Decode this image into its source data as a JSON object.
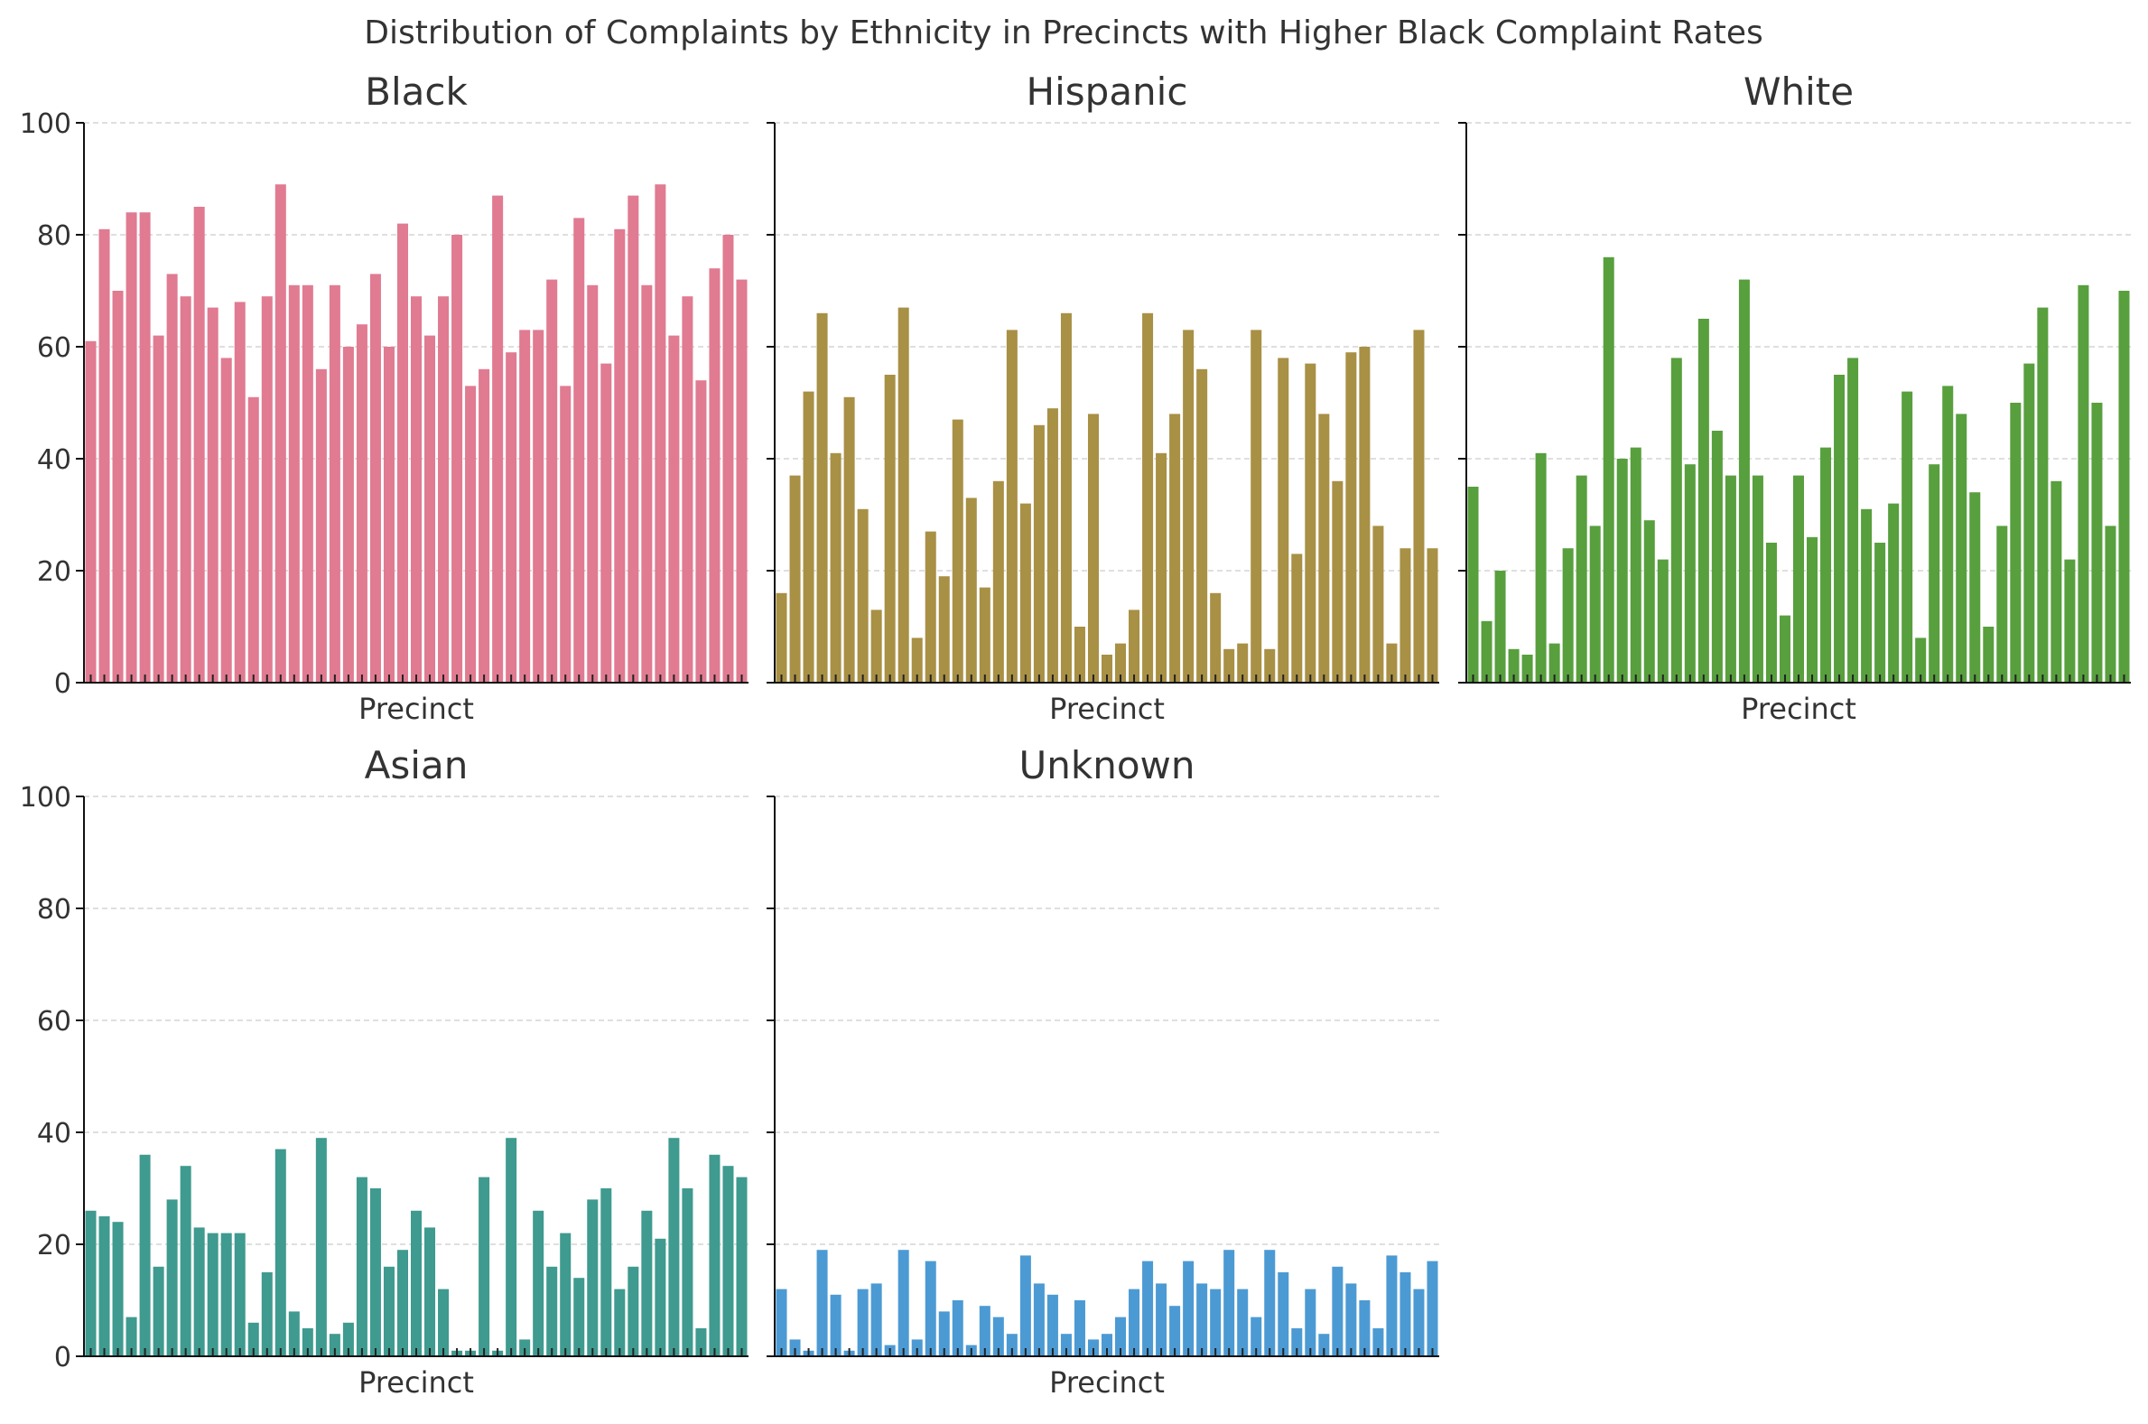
{
  "title": "Distribution of Complaints by Ethnicity in Precincts with Higher Black Complaint Rates",
  "chart_data": [
    {
      "type": "bar",
      "title": "Black",
      "xlabel": "Precinct",
      "ylabel": "",
      "ylim": [
        0,
        100
      ],
      "yticks": [
        0,
        20,
        40,
        60,
        80,
        100
      ],
      "grid": true,
      "color": "#e07b91",
      "values": [
        61,
        81,
        70,
        84,
        84,
        62,
        73,
        69,
        85,
        67,
        58,
        68,
        51,
        69,
        89,
        71,
        71,
        56,
        71,
        60,
        64,
        73,
        60,
        82,
        69,
        62,
        69,
        80,
        53,
        56,
        87,
        59,
        63,
        63,
        72,
        53,
        83,
        71,
        57,
        81,
        87,
        71,
        89,
        62,
        69,
        54,
        74,
        80,
        72
      ]
    },
    {
      "type": "bar",
      "title": "Hispanic",
      "xlabel": "Precinct",
      "ylabel": "",
      "ylim": [
        0,
        100
      ],
      "yticks": [
        0,
        20,
        40,
        60,
        80,
        100
      ],
      "grid": true,
      "color": "#a89045",
      "values": [
        16,
        37,
        52,
        66,
        41,
        51,
        31,
        13,
        55,
        67,
        8,
        27,
        19,
        47,
        33,
        17,
        36,
        63,
        32,
        46,
        49,
        66,
        10,
        48,
        5,
        7,
        13,
        66,
        41,
        48,
        63,
        56,
        16,
        6,
        7,
        63,
        6,
        58,
        23,
        57,
        48,
        36,
        59,
        60,
        28,
        7,
        24,
        63,
        24
      ]
    },
    {
      "type": "bar",
      "title": "White",
      "xlabel": "Precinct",
      "ylabel": "",
      "ylim": [
        0,
        100
      ],
      "yticks": [
        0,
        20,
        40,
        60,
        80,
        100
      ],
      "grid": true,
      "color": "#589f3e",
      "values": [
        35,
        11,
        20,
        6,
        5,
        41,
        7,
        24,
        37,
        28,
        76,
        40,
        42,
        29,
        22,
        58,
        39,
        65,
        45,
        37,
        72,
        37,
        25,
        12,
        37,
        26,
        42,
        55,
        58,
        31,
        25,
        32,
        52,
        8,
        39,
        53,
        48,
        34,
        10,
        28,
        50,
        57,
        67,
        36,
        22,
        71,
        50,
        28,
        70
      ]
    },
    {
      "type": "bar",
      "title": "Asian",
      "xlabel": "Precinct",
      "ylabel": "",
      "ylim": [
        0,
        100
      ],
      "yticks": [
        0,
        20,
        40,
        60,
        80,
        100
      ],
      "grid": true,
      "color": "#3f9a8f",
      "values": [
        26,
        25,
        24,
        7,
        36,
        16,
        28,
        34,
        23,
        22,
        22,
        22,
        6,
        15,
        37,
        8,
        5,
        39,
        4,
        6,
        32,
        30,
        16,
        19,
        26,
        23,
        12,
        1,
        1,
        32,
        1,
        39,
        3,
        26,
        16,
        22,
        14,
        28,
        30,
        12,
        16,
        26,
        21,
        39,
        30,
        5,
        36,
        34,
        32
      ]
    },
    {
      "type": "bar",
      "title": "Unknown",
      "xlabel": "Precinct",
      "ylabel": "",
      "ylim": [
        0,
        100
      ],
      "yticks": [
        0,
        20,
        40,
        60,
        80,
        100
      ],
      "grid": true,
      "color": "#4c9ad3",
      "values": [
        12,
        3,
        1,
        19,
        11,
        1,
        12,
        13,
        2,
        19,
        3,
        17,
        8,
        10,
        2,
        9,
        7,
        4,
        18,
        13,
        11,
        4,
        10,
        3,
        4,
        7,
        12,
        17,
        13,
        9,
        17,
        13,
        12,
        19,
        12,
        7,
        19,
        15,
        5,
        12,
        4,
        16,
        13,
        10,
        5,
        18,
        15,
        12,
        17
      ]
    }
  ]
}
